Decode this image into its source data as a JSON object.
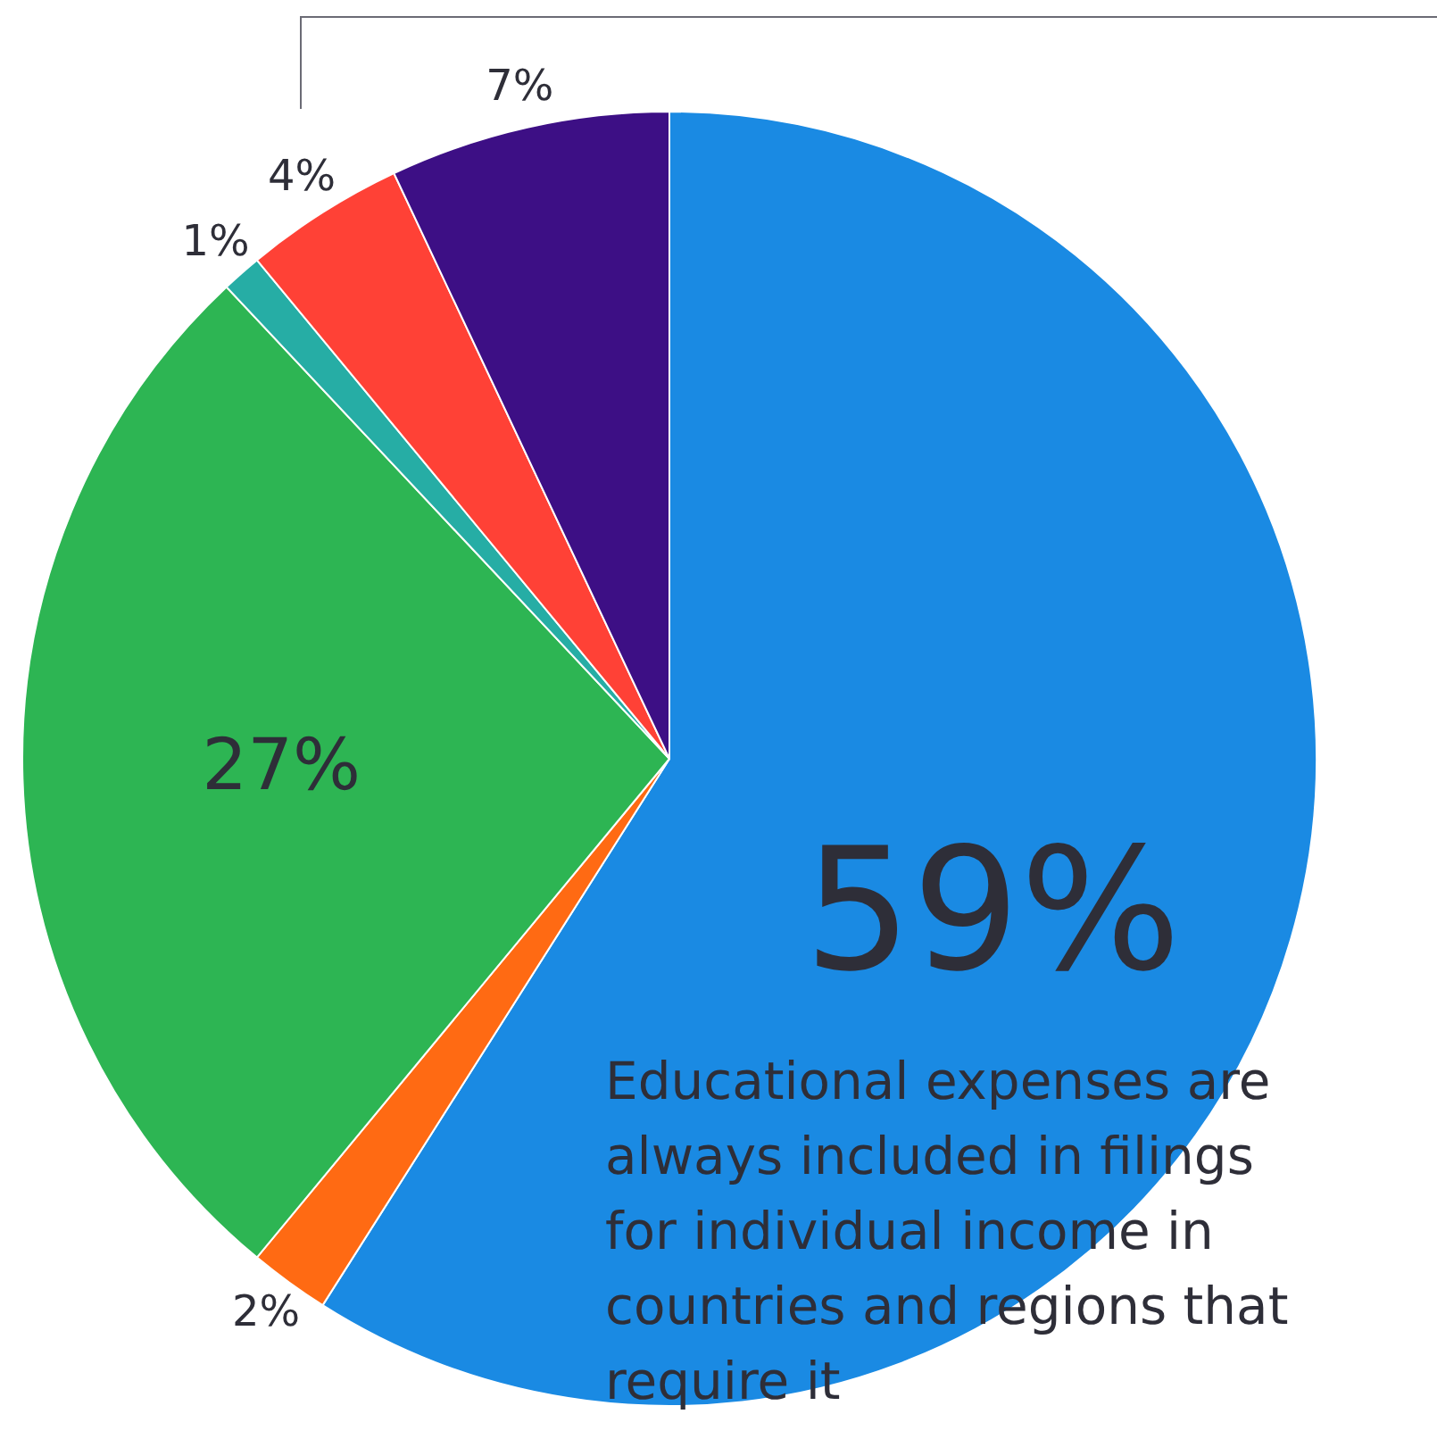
{
  "chart_data": {
    "type": "pie",
    "categories": [
      "Educational expenses are always included in filings for individual income in countries and regions that require it",
      null,
      null,
      null,
      null,
      null
    ],
    "values": [
      59,
      2,
      27,
      1,
      4,
      7
    ],
    "colors": [
      "#1a8ae3",
      "#ff6a13",
      "#2db553",
      "#26ada5",
      "#ff4136",
      "#3d0f85"
    ],
    "value_labels": [
      "59%",
      "2%",
      "27%",
      "1%",
      "4%",
      "7%"
    ]
  }
}
